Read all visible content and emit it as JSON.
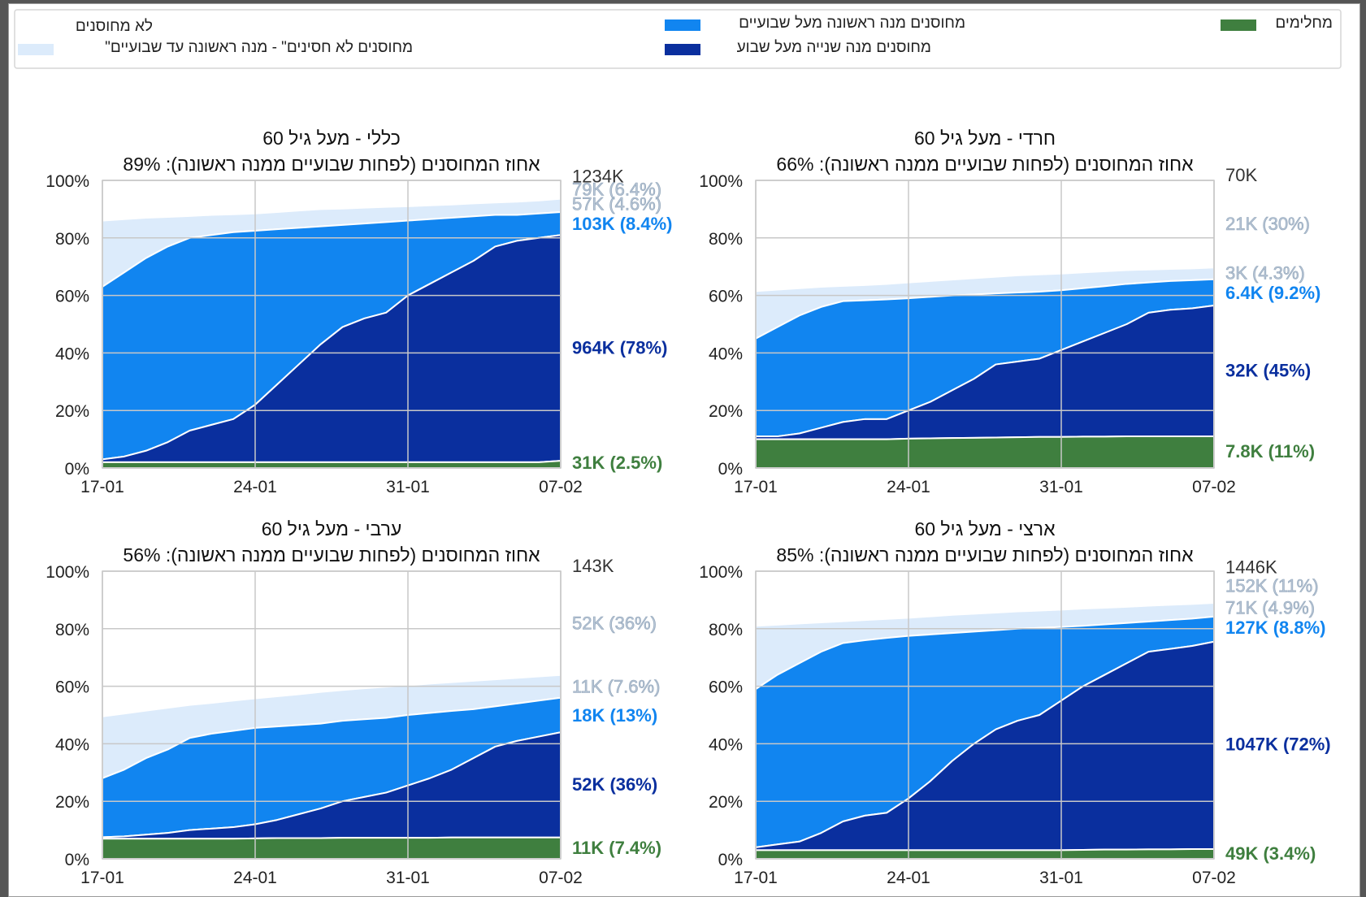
{
  "legend": {
    "placement": "top",
    "items": [
      {
        "label": "לא מחוסנים",
        "color": "#ffffff"
      },
      {
        "label": "\"מחוסנים לא חסינים\" - מנה ראשונה עד שבועיים",
        "color": "#dcebfb"
      },
      {
        "label": "מחוסנים מנה ראשונה מעל שבועיים",
        "color": "#1185f0"
      },
      {
        "label": "מחוסנים מנה שנייה מעל שבוע",
        "color": "#0a2f9e"
      },
      {
        "label": "מחלימים",
        "color": "#3f7f3f"
      }
    ]
  },
  "colors": {
    "recovered": "#3f7f3f",
    "dose2": "#0a2f9e",
    "dose1": "#1185f0",
    "notimmune": "#dcebfb",
    "grid": "#c8c8c8",
    "unvax_label": "#333333",
    "notimmune_label": "#b8c6d6"
  },
  "chart_data": [
    {
      "type": "area",
      "title": "כללי - מעל גיל 60",
      "subtitle": "אחוז המחוסנים (לפחות שבועיים ממנה ראשונה): 89%",
      "x": [
        "17-01",
        "18-01",
        "19-01",
        "20-01",
        "21-01",
        "22-01",
        "23-01",
        "24-01",
        "25-01",
        "26-01",
        "27-01",
        "28-01",
        "29-01",
        "30-01",
        "31-01",
        "01-02",
        "02-02",
        "03-02",
        "04-02",
        "05-02",
        "06-02",
        "07-02"
      ],
      "xticks": [
        "17-01",
        "24-01",
        "31-01",
        "07-02"
      ],
      "ylim": [
        0,
        100
      ],
      "yticks": [
        "0%",
        "20%",
        "40%",
        "60%",
        "80%",
        "100%"
      ],
      "grid": true,
      "series": [
        {
          "key": "recovered",
          "values": [
            2,
            2,
            2,
            2,
            2,
            2,
            2,
            2,
            2,
            2,
            2,
            2,
            2,
            2,
            2,
            2,
            2,
            2,
            2,
            2,
            2,
            2.5
          ]
        },
        {
          "key": "dose2",
          "values": [
            3,
            4,
            6,
            9,
            13,
            15,
            17,
            22,
            29,
            36,
            43,
            49,
            52,
            54,
            60,
            64,
            68,
            72,
            77,
            79,
            80,
            81
          ]
        },
        {
          "key": "dose1",
          "values": [
            63,
            68,
            73,
            77,
            80,
            81,
            82,
            82.5,
            83,
            83.5,
            84,
            84.5,
            85,
            85.5,
            86,
            86.5,
            87,
            87.5,
            88,
            88,
            88.5,
            89
          ]
        },
        {
          "key": "notimmune",
          "values": [
            86,
            86.5,
            87,
            87.3,
            87.6,
            88,
            88.2,
            88.5,
            89,
            89.5,
            90,
            90.2,
            90.5,
            90.8,
            91,
            91.3,
            91.6,
            92,
            92.3,
            92.6,
            93,
            93.6
          ]
        }
      ],
      "end_labels": [
        {
          "text": "1234K",
          "y": 101.5,
          "key": "unvax_label"
        },
        {
          "text": "79K (6.4%)",
          "y": 97,
          "key": "notimmune_label"
        },
        {
          "text": "57K (4.6%)",
          "y": 92,
          "key": "notimmune_label"
        },
        {
          "text": "103K (8.4%)",
          "y": 85,
          "key": "dose1"
        },
        {
          "text": "964K (78%)",
          "y": 42,
          "key": "dose2"
        },
        {
          "text": "31K (2.5%)",
          "y": 2,
          "key": "recovered"
        }
      ]
    },
    {
      "type": "area",
      "title": "חרדי - מעל גיל 60",
      "subtitle": "אחוז המחוסנים (לפחות שבועיים ממנה ראשונה): 66%",
      "x": [
        "17-01",
        "18-01",
        "19-01",
        "20-01",
        "21-01",
        "22-01",
        "23-01",
        "24-01",
        "25-01",
        "26-01",
        "27-01",
        "28-01",
        "29-01",
        "30-01",
        "31-01",
        "01-02",
        "02-02",
        "03-02",
        "04-02",
        "05-02",
        "06-02",
        "07-02"
      ],
      "xticks": [
        "17-01",
        "24-01",
        "31-01",
        "07-02"
      ],
      "ylim": [
        0,
        100
      ],
      "yticks": [
        "0%",
        "20%",
        "40%",
        "60%",
        "80%",
        "100%"
      ],
      "grid": true,
      "series": [
        {
          "key": "recovered",
          "values": [
            10,
            10,
            10,
            10,
            10,
            10,
            10,
            10.2,
            10.3,
            10.4,
            10.5,
            10.6,
            10.7,
            10.8,
            10.8,
            10.9,
            10.9,
            11,
            11,
            11,
            11,
            11
          ]
        },
        {
          "key": "dose2",
          "values": [
            11,
            11,
            12,
            14,
            16,
            17,
            17,
            20,
            23,
            27,
            31,
            36,
            37,
            38,
            41,
            44,
            47,
            50,
            54,
            55,
            55.5,
            56.5
          ]
        },
        {
          "key": "dose1",
          "values": [
            45,
            49,
            53,
            56,
            58,
            58.3,
            58.6,
            59,
            59.5,
            60,
            60.3,
            60.7,
            61,
            61.3,
            61.8,
            62.5,
            63.2,
            64,
            64.5,
            65,
            65.3,
            65.6
          ]
        },
        {
          "key": "notimmune",
          "values": [
            61.5,
            62,
            62.5,
            63,
            63.3,
            63.6,
            64,
            64.5,
            65,
            65.5,
            66,
            66.5,
            67,
            67.3,
            67.6,
            68,
            68.4,
            68.8,
            69,
            69.2,
            69.4,
            69.7
          ]
        }
      ],
      "end_labels": [
        {
          "text": "70K",
          "y": 102,
          "key": "unvax_label"
        },
        {
          "text": "21K (30%)",
          "y": 85,
          "key": "notimmune_label"
        },
        {
          "text": "3K (4.3%)",
          "y": 68,
          "key": "notimmune_label"
        },
        {
          "text": "6.4K (9.2%)",
          "y": 61,
          "key": "dose1"
        },
        {
          "text": "32K (45%)",
          "y": 34,
          "key": "dose2"
        },
        {
          "text": "7.8K (11%)",
          "y": 6,
          "key": "recovered"
        }
      ]
    },
    {
      "type": "area",
      "title": "ערבי - מעל גיל 60",
      "subtitle": "אחוז המחוסנים (לפחות שבועיים ממנה ראשונה): 56%",
      "x": [
        "17-01",
        "18-01",
        "19-01",
        "20-01",
        "21-01",
        "22-01",
        "23-01",
        "24-01",
        "25-01",
        "26-01",
        "27-01",
        "28-01",
        "29-01",
        "30-01",
        "31-01",
        "01-02",
        "02-02",
        "03-02",
        "04-02",
        "05-02",
        "06-02",
        "07-02"
      ],
      "xticks": [
        "17-01",
        "24-01",
        "31-01",
        "07-02"
      ],
      "ylim": [
        0,
        100
      ],
      "yticks": [
        "0%",
        "20%",
        "40%",
        "60%",
        "80%",
        "100%"
      ],
      "grid": true,
      "series": [
        {
          "key": "recovered",
          "values": [
            7,
            7,
            7,
            7,
            7,
            7,
            7,
            7.1,
            7.2,
            7.2,
            7.2,
            7.3,
            7.3,
            7.3,
            7.3,
            7.3,
            7.4,
            7.4,
            7.4,
            7.4,
            7.4,
            7.4
          ]
        },
        {
          "key": "dose2",
          "values": [
            7.5,
            7.8,
            8.4,
            9,
            10,
            10.5,
            11,
            12,
            13.5,
            15.5,
            17.5,
            20,
            21.5,
            23,
            25.5,
            28,
            31,
            35,
            39,
            41,
            42.5,
            44
          ]
        },
        {
          "key": "dose1",
          "values": [
            28,
            31,
            35,
            38,
            42,
            43.5,
            44.5,
            45.5,
            46,
            46.5,
            47,
            48,
            48.5,
            49,
            50,
            50.7,
            51.4,
            52,
            53,
            54,
            55,
            56
          ]
        },
        {
          "key": "notimmune",
          "values": [
            49.5,
            50.5,
            51.5,
            52.5,
            53.5,
            54.2,
            55,
            55.8,
            56.5,
            57.2,
            58,
            58.7,
            59.3,
            59.8,
            60.3,
            60.9,
            61.4,
            61.9,
            62.4,
            62.9,
            63.4,
            63.9
          ]
        }
      ],
      "end_labels": [
        {
          "text": "143K",
          "y": 102,
          "key": "unvax_label"
        },
        {
          "text": "52K (36%)",
          "y": 82,
          "key": "notimmune_label"
        },
        {
          "text": "11K (7.6%)",
          "y": 60,
          "key": "notimmune_label"
        },
        {
          "text": "18K (13%)",
          "y": 50,
          "key": "dose1"
        },
        {
          "text": "52K (36%)",
          "y": 26,
          "key": "dose2"
        },
        {
          "text": "11K (7.4%)",
          "y": 4,
          "key": "recovered"
        }
      ]
    },
    {
      "type": "area",
      "title": "ארצי - מעל גיל 60",
      "subtitle": "אחוז המחוסנים (לפחות שבועיים ממנה ראשונה): 85%",
      "x": [
        "17-01",
        "18-01",
        "19-01",
        "20-01",
        "21-01",
        "22-01",
        "23-01",
        "24-01",
        "25-01",
        "26-01",
        "27-01",
        "28-01",
        "29-01",
        "30-01",
        "31-01",
        "01-02",
        "02-02",
        "03-02",
        "04-02",
        "05-02",
        "06-02",
        "07-02"
      ],
      "xticks": [
        "17-01",
        "24-01",
        "31-01",
        "07-02"
      ],
      "ylim": [
        0,
        100
      ],
      "yticks": [
        "0%",
        "20%",
        "40%",
        "60%",
        "80%",
        "100%"
      ],
      "grid": true,
      "series": [
        {
          "key": "recovered",
          "values": [
            3,
            3,
            3,
            3,
            3,
            3,
            3,
            3,
            3,
            3,
            3,
            3,
            3,
            3,
            3,
            3.1,
            3.2,
            3.2,
            3.3,
            3.3,
            3.4,
            3.4
          ]
        },
        {
          "key": "dose2",
          "values": [
            4,
            5,
            6,
            9,
            13,
            15,
            16,
            21,
            27,
            34,
            40,
            45,
            48,
            50,
            55,
            60,
            64,
            68,
            72,
            73,
            74,
            75.5
          ]
        },
        {
          "key": "dose1",
          "values": [
            59,
            64,
            68,
            72,
            75,
            76,
            76.8,
            77.5,
            78,
            78.5,
            79,
            79.5,
            80,
            80.3,
            80.6,
            81,
            81.5,
            82,
            82.5,
            83,
            83.5,
            84.2
          ]
        },
        {
          "key": "notimmune",
          "values": [
            81,
            81.4,
            81.8,
            82.2,
            82.6,
            83,
            83.4,
            83.8,
            84.3,
            84.8,
            85.2,
            85.6,
            86,
            86.3,
            86.6,
            87,
            87.3,
            87.6,
            88,
            88.3,
            88.6,
            89
          ]
        }
      ],
      "end_labels": [
        {
          "text": "1446K",
          "y": 101.5,
          "key": "unvax_label"
        },
        {
          "text": "152K (11%)",
          "y": 95,
          "key": "notimmune_label"
        },
        {
          "text": "71K (4.9%)",
          "y": 87.5,
          "key": "notimmune_label"
        },
        {
          "text": "127K (8.8%)",
          "y": 80.5,
          "key": "dose1"
        },
        {
          "text": "1047K (72%)",
          "y": 40,
          "key": "dose2"
        },
        {
          "text": "49K (3.4%)",
          "y": 2,
          "key": "recovered"
        }
      ]
    }
  ]
}
